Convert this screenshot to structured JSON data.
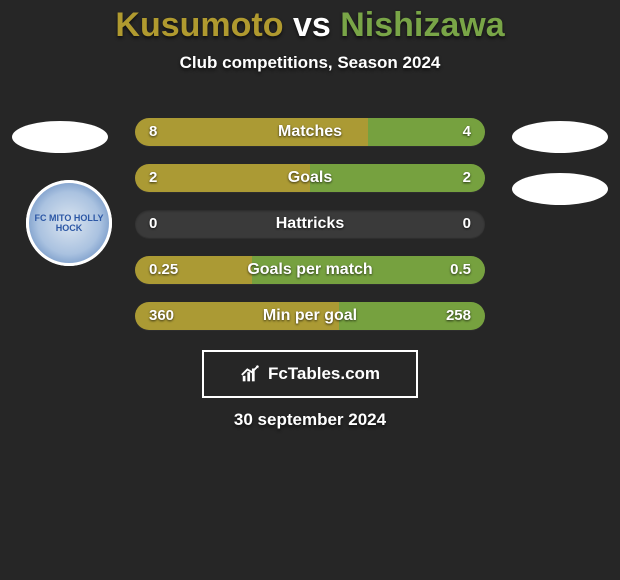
{
  "header": {
    "player1": "Kusumoto",
    "vs": "vs",
    "player2": "Nishizawa",
    "title_color_p1": "#b09a2f",
    "title_color_vs": "#ffffff",
    "title_color_p2": "#79a547",
    "subtitle": "Club competitions, Season 2024"
  },
  "colors": {
    "left_bar": "#ab9a34",
    "right_bar": "#76a13f",
    "track": "#3a3a3a",
    "background": "#262626"
  },
  "stats": [
    {
      "label": "Matches",
      "left_value": "8",
      "right_value": "4",
      "left_pct": 66.7,
      "right_pct": 33.3
    },
    {
      "label": "Goals",
      "left_value": "2",
      "right_value": "2",
      "left_pct": 50.0,
      "right_pct": 50.0
    },
    {
      "label": "Hattricks",
      "left_value": "0",
      "right_value": "0",
      "left_pct": 0.0,
      "right_pct": 0.0
    },
    {
      "label": "Goals per match",
      "left_value": "0.25",
      "right_value": "0.5",
      "left_pct": 33.3,
      "right_pct": 66.7
    },
    {
      "label": "Min per goal",
      "left_value": "360",
      "right_value": "258",
      "left_pct": 58.3,
      "right_pct": 41.7
    }
  ],
  "footer": {
    "brand": "FcTables.com",
    "date": "30 september 2024"
  },
  "avatars": {
    "left_club_text": "FC MITO HOLLY HOCK"
  }
}
